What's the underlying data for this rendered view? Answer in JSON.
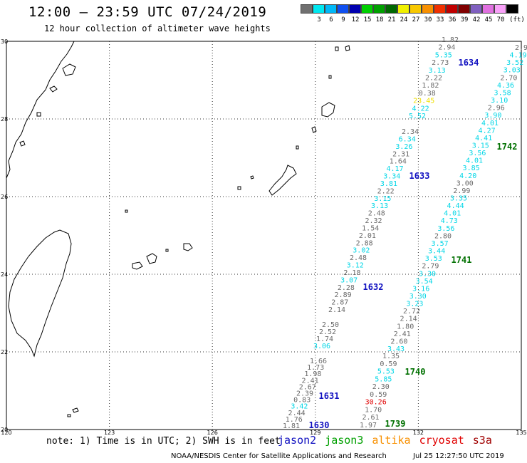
{
  "header": {
    "title": "12:00 – 23:59 UTC 07/24/2019",
    "subtitle": "12 hour collection of altimeter wave heights"
  },
  "scale": {
    "unit": "(ft)",
    "swatches": [
      {
        "label": "",
        "color": "#707070"
      },
      {
        "label": "3",
        "color": "#00e8f0"
      },
      {
        "label": "6",
        "color": "#00b8f8"
      },
      {
        "label": "9",
        "color": "#1050f0"
      },
      {
        "label": "12",
        "color": "#0000b0"
      },
      {
        "label": "15",
        "color": "#00d000"
      },
      {
        "label": "18",
        "color": "#00a000"
      },
      {
        "label": "21",
        "color": "#006800"
      },
      {
        "label": "24",
        "color": "#f0f000"
      },
      {
        "label": "27",
        "color": "#f8c800"
      },
      {
        "label": "30",
        "color": "#f89000"
      },
      {
        "label": "33",
        "color": "#f03000"
      },
      {
        "label": "36",
        "color": "#c00000"
      },
      {
        "label": "39",
        "color": "#800000"
      },
      {
        "label": "42",
        "color": "#8060c0"
      },
      {
        "label": "45",
        "color": "#e070e0"
      },
      {
        "label": "70",
        "color": "#f8a0f8"
      },
      {
        "label": "",
        "color": "#000000"
      }
    ]
  },
  "axes": {
    "lon_ticks": [
      "120",
      "123",
      "126",
      "129",
      "132",
      "135"
    ],
    "lat_ticks": [
      "30",
      "28",
      "26",
      "24",
      "22",
      "20"
    ]
  },
  "colors": {
    "gray": "#6a6a6a",
    "cyan": "#00d6e6",
    "yellow": "#f0e000",
    "red": "#e00000",
    "blue": "#1010c0",
    "green": "#007000"
  },
  "passes": [
    {
      "label": "1634",
      "color": "#1010c0"
    },
    {
      "label": "1633",
      "color": "#1010c0"
    },
    {
      "label": "1632",
      "color": "#1010c0"
    },
    {
      "label": "1631",
      "color": "#1010c0"
    },
    {
      "label": "1630",
      "color": "#1010c0"
    },
    {
      "label": "1742",
      "color": "#007000"
    },
    {
      "label": "1741",
      "color": "#007000"
    },
    {
      "label": "1740",
      "color": "#007000"
    },
    {
      "label": "1739",
      "color": "#007000"
    }
  ],
  "track_a": [
    {
      "v": "1.82",
      "c": "gray"
    },
    {
      "v": "2.94",
      "c": "gray"
    },
    {
      "v": "5.35",
      "c": "cyan"
    },
    {
      "v": "2.73",
      "c": "gray"
    },
    {
      "v": "3.13",
      "c": "cyan"
    },
    {
      "v": "2.22",
      "c": "gray"
    },
    {
      "v": "1.82",
      "c": "gray"
    },
    {
      "v": "0.38",
      "c": "gray"
    },
    {
      "v": "23.45",
      "c": "yellow"
    },
    {
      "v": "4.22",
      "c": "cyan"
    },
    {
      "v": "5.52",
      "c": "cyan"
    }
  ],
  "track_b": [
    {
      "v": "2.34",
      "c": "gray"
    },
    {
      "v": "6.34",
      "c": "cyan"
    },
    {
      "v": "3.26",
      "c": "cyan"
    },
    {
      "v": "2.31",
      "c": "gray"
    },
    {
      "v": "1.64",
      "c": "gray"
    },
    {
      "v": "4.17",
      "c": "cyan"
    },
    {
      "v": "3.34",
      "c": "cyan"
    },
    {
      "v": "3.81",
      "c": "cyan"
    },
    {
      "v": "2.22",
      "c": "gray"
    },
    {
      "v": "3.15",
      "c": "cyan"
    },
    {
      "v": "3.13",
      "c": "cyan"
    },
    {
      "v": "2.48",
      "c": "gray"
    },
    {
      "v": "2.32",
      "c": "gray"
    },
    {
      "v": "1.54",
      "c": "gray"
    },
    {
      "v": "2.01",
      "c": "gray"
    },
    {
      "v": "2.88",
      "c": "gray"
    },
    {
      "v": "3.02",
      "c": "cyan"
    },
    {
      "v": "2.48",
      "c": "gray"
    },
    {
      "v": "3.12",
      "c": "cyan"
    },
    {
      "v": "2.18",
      "c": "gray"
    },
    {
      "v": "3.07",
      "c": "cyan"
    },
    {
      "v": "2.28",
      "c": "gray"
    },
    {
      "v": "2.89",
      "c": "gray"
    },
    {
      "v": "2.87",
      "c": "gray"
    },
    {
      "v": "2.14",
      "c": "gray"
    }
  ],
  "track_c": [
    {
      "v": "2.50",
      "c": "gray"
    },
    {
      "v": "2.52",
      "c": "gray"
    },
    {
      "v": "1.74",
      "c": "gray"
    },
    {
      "v": "3.06",
      "c": "cyan"
    }
  ],
  "track_d": [
    {
      "v": "1.66",
      "c": "gray"
    },
    {
      "v": "1.73",
      "c": "gray"
    },
    {
      "v": "1.98",
      "c": "gray"
    },
    {
      "v": "2.41",
      "c": "gray"
    },
    {
      "v": "2.67",
      "c": "gray"
    },
    {
      "v": "2.39",
      "c": "gray"
    },
    {
      "v": "0.83",
      "c": "gray"
    },
    {
      "v": "3.42",
      "c": "cyan"
    },
    {
      "v": "2.44",
      "c": "gray"
    },
    {
      "v": "1.76",
      "c": "gray"
    },
    {
      "v": "1.81",
      "c": "gray"
    }
  ],
  "track_e": [
    {
      "v": "2.9",
      "c": "gray"
    },
    {
      "v": "4.19",
      "c": "cyan"
    },
    {
      "v": "3.52",
      "c": "cyan"
    },
    {
      "v": "3.03",
      "c": "cyan"
    },
    {
      "v": "2.70",
      "c": "gray"
    },
    {
      "v": "4.36",
      "c": "cyan"
    },
    {
      "v": "3.58",
      "c": "cyan"
    },
    {
      "v": "3.10",
      "c": "cyan"
    },
    {
      "v": "2.96",
      "c": "gray"
    },
    {
      "v": "3.90",
      "c": "cyan"
    },
    {
      "v": "4.01",
      "c": "cyan"
    },
    {
      "v": "4.27",
      "c": "cyan"
    },
    {
      "v": "4.41",
      "c": "cyan"
    },
    {
      "v": "3.15",
      "c": "cyan"
    },
    {
      "v": "3.56",
      "c": "cyan"
    },
    {
      "v": "4.01",
      "c": "cyan"
    },
    {
      "v": "3.85",
      "c": "cyan"
    },
    {
      "v": "4.20",
      "c": "cyan"
    },
    {
      "v": "3.00",
      "c": "gray"
    },
    {
      "v": "2.99",
      "c": "gray"
    },
    {
      "v": "3.35",
      "c": "cyan"
    },
    {
      "v": "4.44",
      "c": "cyan"
    },
    {
      "v": "4.01",
      "c": "cyan"
    },
    {
      "v": "4.73",
      "c": "cyan"
    },
    {
      "v": "3.56",
      "c": "cyan"
    },
    {
      "v": "2.80",
      "c": "gray"
    },
    {
      "v": "3.57",
      "c": "cyan"
    },
    {
      "v": "3.44",
      "c": "cyan"
    },
    {
      "v": "3.53",
      "c": "cyan"
    },
    {
      "v": "2.79",
      "c": "gray"
    },
    {
      "v": "3.30",
      "c": "cyan"
    },
    {
      "v": "3.54",
      "c": "cyan"
    },
    {
      "v": "3.16",
      "c": "cyan"
    },
    {
      "v": "3.30",
      "c": "cyan"
    },
    {
      "v": "3.23",
      "c": "cyan"
    },
    {
      "v": "2.72",
      "c": "gray"
    },
    {
      "v": "2.14",
      "c": "gray"
    },
    {
      "v": "1.80",
      "c": "gray"
    },
    {
      "v": "2.41",
      "c": "gray"
    },
    {
      "v": "2.60",
      "c": "gray"
    },
    {
      "v": "3.43",
      "c": "cyan"
    }
  ],
  "track_f": [
    {
      "v": "1.35",
      "c": "gray"
    },
    {
      "v": "0.59",
      "c": "gray"
    },
    {
      "v": "5.53",
      "c": "cyan"
    },
    {
      "v": "5.85",
      "c": "cyan"
    },
    {
      "v": "2.30",
      "c": "gray"
    },
    {
      "v": "0.59",
      "c": "gray"
    },
    {
      "v": "30.26",
      "c": "red"
    },
    {
      "v": "1.70",
      "c": "gray"
    },
    {
      "v": "2.61",
      "c": "gray"
    },
    {
      "v": "1.97",
      "c": "gray"
    }
  ],
  "footer": {
    "note": "note: 1) Time is in UTC; 2) SWH is in feet",
    "satellites": [
      {
        "name": "jason2",
        "color": "#1010c0"
      },
      {
        "name": "jason3",
        "color": "#00a000"
      },
      {
        "name": "altika",
        "color": "#f89000"
      },
      {
        "name": "cryosat",
        "color": "#e00000"
      },
      {
        "name": "s3a",
        "color": "#a00000"
      }
    ],
    "credit": "NOAA/NESDIS Center for Satellite Applications and Research",
    "timestamp": "Jul 25 12:27:50 UTC 2019"
  }
}
